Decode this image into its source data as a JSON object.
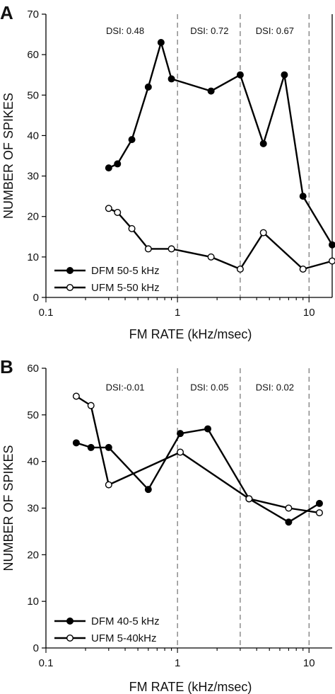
{
  "chart_data": [
    {
      "panel": "A",
      "type": "line",
      "x_scale": "log",
      "xlabel": "FM RATE (kHz/msec)",
      "ylabel": "NUMBER OF SPIKES",
      "xlim": [
        0.1,
        15
      ],
      "ylim": [
        0,
        70
      ],
      "xticks": [
        0.1,
        1,
        10
      ],
      "xtick_labels": [
        "0.1",
        "1",
        "10"
      ],
      "yticks": [
        0,
        10,
        20,
        30,
        40,
        50,
        60,
        70
      ],
      "ytick_labels": [
        "0",
        "10",
        "20",
        "30",
        "40",
        "50",
        "60",
        "70"
      ],
      "dashed_lines_x": [
        1,
        3,
        10
      ],
      "annotations": [
        {
          "text": "DSI: 0.48",
          "x": 0.4,
          "y": 66
        },
        {
          "text": "DSI: 0.72",
          "x": 1.75,
          "y": 66
        },
        {
          "text": "DSI: 0.67",
          "x": 5.5,
          "y": 66
        }
      ],
      "legend_position": "bottom-left",
      "series": [
        {
          "name": "DFM 50-5 kHz",
          "marker": "filled-circle",
          "x": [
            0.3,
            0.35,
            0.45,
            0.6,
            0.75,
            0.9,
            1.8,
            3.0,
            4.5,
            6.5,
            9.0,
            15.0
          ],
          "y": [
            32,
            33,
            39,
            52,
            63,
            54,
            51,
            55,
            38,
            55,
            25,
            13
          ]
        },
        {
          "name": "UFM 5-50 kHz",
          "marker": "open-circle",
          "x": [
            0.3,
            0.35,
            0.45,
            0.6,
            0.9,
            1.8,
            3.0,
            4.5,
            9.0,
            15.0
          ],
          "y": [
            22,
            21,
            17,
            12,
            12,
            10,
            7,
            16,
            7,
            9
          ]
        }
      ]
    },
    {
      "panel": "B",
      "type": "line",
      "x_scale": "log",
      "xlabel": "FM RATE (kHz/msec)",
      "ylabel": "NUMBER OF SPIKES",
      "xlim": [
        0.1,
        15
      ],
      "ylim": [
        0,
        60
      ],
      "xticks": [
        0.1,
        1,
        10
      ],
      "xtick_labels": [
        "0.1",
        "1",
        "10"
      ],
      "yticks": [
        0,
        10,
        20,
        30,
        40,
        50,
        60
      ],
      "ytick_labels": [
        "0",
        "10",
        "20",
        "30",
        "40",
        "50",
        "60"
      ],
      "dashed_lines_x": [
        1,
        3,
        10
      ],
      "annotations": [
        {
          "text": "DSI:-0.01",
          "x": 0.4,
          "y": 56
        },
        {
          "text": "DSI: 0.05",
          "x": 1.75,
          "y": 56
        },
        {
          "text": "DSI: 0.02",
          "x": 5.5,
          "y": 56
        }
      ],
      "legend_position": "bottom-left",
      "series": [
        {
          "name": "DFM 40-5 kHz",
          "marker": "filled-circle",
          "x": [
            0.17,
            0.22,
            0.3,
            0.6,
            1.05,
            1.7,
            3.5,
            7.0,
            12.0
          ],
          "y": [
            44,
            43,
            43,
            34,
            46,
            47,
            32,
            27,
            31
          ]
        },
        {
          "name": "UFM 5-40kHz",
          "marker": "open-circle",
          "x": [
            0.17,
            0.22,
            0.3,
            1.05,
            3.5,
            7.0,
            12.0
          ],
          "y": [
            54,
            52,
            35,
            42,
            32,
            30,
            29
          ]
        }
      ]
    }
  ]
}
